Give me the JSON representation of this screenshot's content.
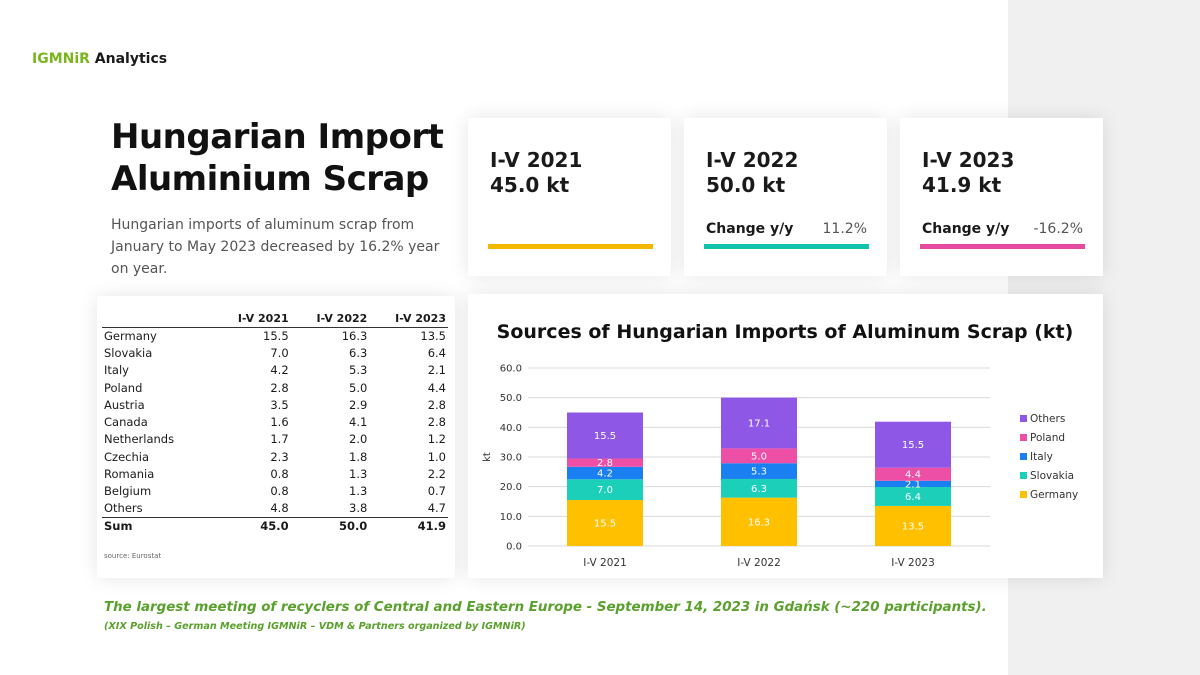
{
  "brand": {
    "accent": "IGMNiR",
    "rest": " Analytics"
  },
  "title": "Hungarian Import Aluminium Scrap",
  "subtitle": "Hungarian imports of aluminum scrap from January to May 2023 decreased by 16.2% year on year.",
  "kpis": [
    {
      "period": "I-V 2021",
      "value": "45.0 kt",
      "change_label": "",
      "change_value": "",
      "color": "#f5b800"
    },
    {
      "period": "I-V 2022",
      "value": "50.0 kt",
      "change_label": "Change y/y",
      "change_value": "11.2%",
      "color": "#12c4b0"
    },
    {
      "period": "I-V 2023",
      "value": "41.9 kt",
      "change_label": "Change y/y",
      "change_value": "-16.2%",
      "color": "#e64aa0"
    }
  ],
  "table": {
    "headers": [
      "",
      "I-V  2021",
      "I-V  2022",
      "I-V  2023"
    ],
    "rows": [
      [
        "Germany",
        "15.5",
        "16.3",
        "13.5"
      ],
      [
        "Slovakia",
        "7.0",
        "6.3",
        "6.4"
      ],
      [
        "Italy",
        "4.2",
        "5.3",
        "2.1"
      ],
      [
        "Poland",
        "2.8",
        "5.0",
        "4.4"
      ],
      [
        "Austria",
        "3.5",
        "2.9",
        "2.8"
      ],
      [
        "Canada",
        "1.6",
        "4.1",
        "2.8"
      ],
      [
        "Netherlands",
        "1.7",
        "2.0",
        "1.2"
      ],
      [
        "Czechia",
        "2.3",
        "1.8",
        "1.0"
      ],
      [
        "Romania",
        "0.8",
        "1.3",
        "2.2"
      ],
      [
        "Belgium",
        "0.8",
        "1.3",
        "0.7"
      ],
      [
        "Others",
        "4.8",
        "3.8",
        "4.7"
      ]
    ],
    "sum": [
      "Sum",
      "45.0",
      "50.0",
      "41.9"
    ],
    "source": "source: Eurostat"
  },
  "chart_data": {
    "type": "bar",
    "stacked": true,
    "title": "Sources of Hungarian Imports of Aluminum Scrap (kt)",
    "xlabel": "",
    "ylabel": "kt",
    "ylim": [
      0,
      60
    ],
    "yticks": [
      "0.0",
      "10.0",
      "20.0",
      "30.0",
      "40.0",
      "50.0",
      "60.0"
    ],
    "grid": true,
    "legend": "right",
    "categories": [
      "I-V 2021",
      "I-V 2022",
      "I-V 2023"
    ],
    "series": [
      {
        "name": "Germany",
        "values": [
          15.5,
          16.3,
          13.5
        ],
        "labels": [
          "15.5",
          "16.3",
          "13.5"
        ],
        "color": "#ffc000"
      },
      {
        "name": "Slovakia",
        "values": [
          7.0,
          6.3,
          6.4
        ],
        "labels": [
          "7.0",
          "6.3",
          "6.4"
        ],
        "color": "#1ccfb8"
      },
      {
        "name": "Italy",
        "values": [
          4.2,
          5.3,
          2.1
        ],
        "labels": [
          "4.2",
          "5.3",
          "2.1"
        ],
        "color": "#1a7ff0"
      },
      {
        "name": "Poland",
        "values": [
          2.8,
          5.0,
          4.4
        ],
        "labels": [
          "2.8",
          "5.0",
          "4.4"
        ],
        "color": "#ee4fa6"
      },
      {
        "name": "Others",
        "values": [
          15.5,
          17.1,
          15.5
        ],
        "labels": [
          "15.5",
          "17.1",
          "15.5"
        ],
        "color": "#8f57e6"
      }
    ]
  },
  "footer": {
    "line1": "The largest meeting  of recyclers of Central  and Eastern Europe  - September  14, 2023  in Gdańsk  (~220 participants).",
    "line2": "(XIX Polish – German  Meeting  IGMNiR  – VDM & Partners  organized by IGMNiR)"
  }
}
